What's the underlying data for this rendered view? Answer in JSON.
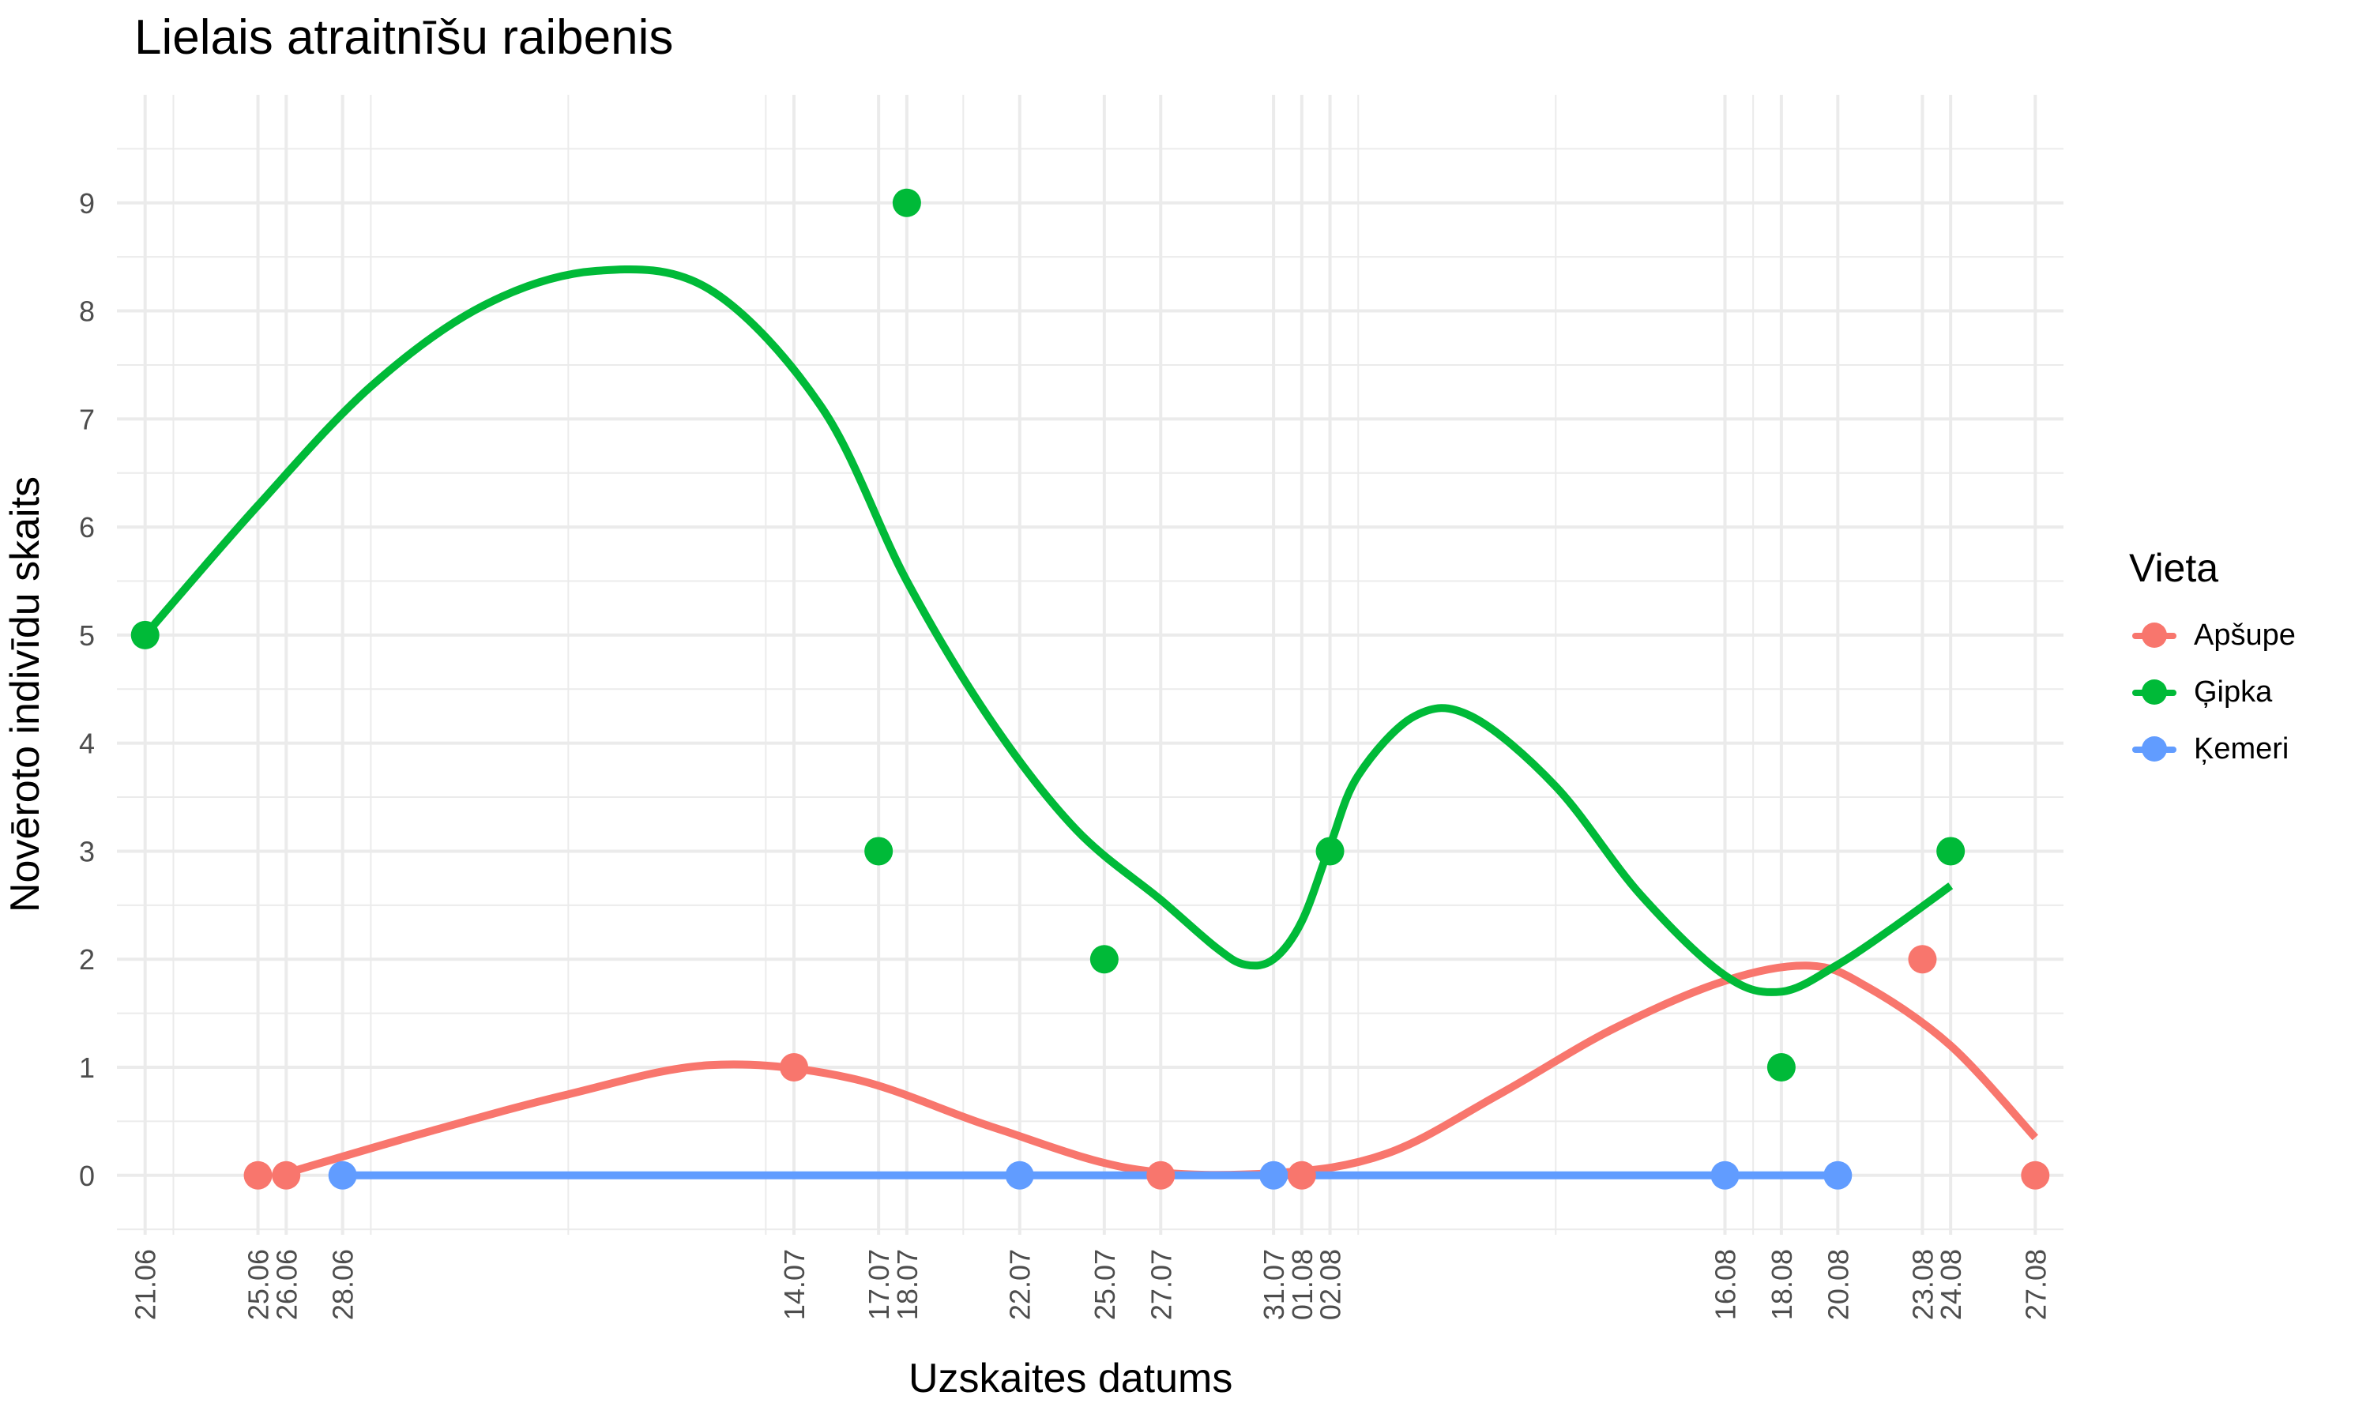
{
  "chart_data": {
    "type": "scatter",
    "title": "Lielais atraitnīšu raibenis",
    "xlabel": "Uzskaites datums",
    "ylabel": "Novēroto indivīdu skaits",
    "legend_title": "Vieta",
    "legend_position": "right",
    "grid": true,
    "ylim": [
      -0.55,
      10
    ],
    "xlim": [
      "2020-06-20",
      "2020-08-28"
    ],
    "y_ticks": [
      "0",
      "1",
      "2",
      "3",
      "4",
      "5",
      "6",
      "7",
      "8",
      "9"
    ],
    "x_ticks": [
      {
        "date": "2020-06-21",
        "label": "21.06"
      },
      {
        "date": "2020-06-25",
        "label": "25.06"
      },
      {
        "date": "2020-06-26",
        "label": "26.06"
      },
      {
        "date": "2020-06-28",
        "label": "28.06"
      },
      {
        "date": "2020-07-14",
        "label": "14.07"
      },
      {
        "date": "2020-07-17",
        "label": "17.07"
      },
      {
        "date": "2020-07-18",
        "label": "18.07"
      },
      {
        "date": "2020-07-22",
        "label": "22.07"
      },
      {
        "date": "2020-07-25",
        "label": "25.07"
      },
      {
        "date": "2020-07-27",
        "label": "27.07"
      },
      {
        "date": "2020-07-31",
        "label": "31.07"
      },
      {
        "date": "2020-08-01",
        "label": "01.08"
      },
      {
        "date": "2020-08-02",
        "label": "02.08"
      },
      {
        "date": "2020-08-16",
        "label": "16.08"
      },
      {
        "date": "2020-08-18",
        "label": "18.08"
      },
      {
        "date": "2020-08-20",
        "label": "20.08"
      },
      {
        "date": "2020-08-23",
        "label": "23.08"
      },
      {
        "date": "2020-08-24",
        "label": "24.08"
      },
      {
        "date": "2020-08-27",
        "label": "27.08"
      }
    ],
    "series": [
      {
        "name": "Apšupe",
        "color": "#F8766D",
        "points": [
          {
            "x": "2020-06-25",
            "y": 0
          },
          {
            "x": "2020-06-26",
            "y": 0
          },
          {
            "x": "2020-07-14",
            "y": 1
          },
          {
            "x": "2020-07-27",
            "y": 0
          },
          {
            "x": "2020-08-01",
            "y": 0
          },
          {
            "x": "2020-08-23",
            "y": 2
          },
          {
            "x": "2020-08-27",
            "y": 0
          }
        ],
        "trend": [
          {
            "x": "2020-06-26",
            "y": 0.02
          },
          {
            "x": "2020-07-01",
            "y": 0.4
          },
          {
            "x": "2020-07-06",
            "y": 0.75
          },
          {
            "x": "2020-07-11",
            "y": 1.02
          },
          {
            "x": "2020-07-16",
            "y": 0.9
          },
          {
            "x": "2020-07-21",
            "y": 0.45
          },
          {
            "x": "2020-07-26",
            "y": 0.06
          },
          {
            "x": "2020-07-31",
            "y": 0.02
          },
          {
            "x": "2020-08-04",
            "y": 0.2
          },
          {
            "x": "2020-08-08",
            "y": 0.75
          },
          {
            "x": "2020-08-12",
            "y": 1.35
          },
          {
            "x": "2020-08-16",
            "y": 1.8
          },
          {
            "x": "2020-08-19",
            "y": 1.94
          },
          {
            "x": "2020-08-21",
            "y": 1.75
          },
          {
            "x": "2020-08-24",
            "y": 1.2
          },
          {
            "x": "2020-08-27",
            "y": 0.35
          }
        ]
      },
      {
        "name": "Ģipka",
        "color": "#00BA38",
        "points": [
          {
            "x": "2020-06-21",
            "y": 5
          },
          {
            "x": "2020-07-17",
            "y": 3
          },
          {
            "x": "2020-07-18",
            "y": 9
          },
          {
            "x": "2020-07-25",
            "y": 2
          },
          {
            "x": "2020-08-02",
            "y": 3
          },
          {
            "x": "2020-08-18",
            "y": 1
          },
          {
            "x": "2020-08-24",
            "y": 3
          }
        ],
        "trend": [
          {
            "x": "2020-06-21",
            "y": 5
          },
          {
            "x": "2020-06-25",
            "y": 6.2
          },
          {
            "x": "2020-06-29",
            "y": 7.3
          },
          {
            "x": "2020-07-03",
            "y": 8.05
          },
          {
            "x": "2020-07-07",
            "y": 8.37
          },
          {
            "x": "2020-07-11",
            "y": 8.2
          },
          {
            "x": "2020-07-15",
            "y": 7.1
          },
          {
            "x": "2020-07-18",
            "y": 5.5
          },
          {
            "x": "2020-07-21",
            "y": 4.2
          },
          {
            "x": "2020-07-24",
            "y": 3.2
          },
          {
            "x": "2020-07-27",
            "y": 2.55
          },
          {
            "x": "2020-07-29",
            "y": 2.1
          },
          {
            "x": "2020-07-30",
            "y": 1.95
          },
          {
            "x": "2020-07-31",
            "y": 2.0
          },
          {
            "x": "2020-08-01",
            "y": 2.35
          },
          {
            "x": "2020-08-02",
            "y": 3.05
          },
          {
            "x": "2020-08-03",
            "y": 3.7
          },
          {
            "x": "2020-08-05",
            "y": 4.25
          },
          {
            "x": "2020-08-07",
            "y": 4.25
          },
          {
            "x": "2020-08-10",
            "y": 3.6
          },
          {
            "x": "2020-08-13",
            "y": 2.6
          },
          {
            "x": "2020-08-16",
            "y": 1.85
          },
          {
            "x": "2020-08-18",
            "y": 1.7
          },
          {
            "x": "2020-08-20",
            "y": 1.95
          },
          {
            "x": "2020-08-22",
            "y": 2.3
          },
          {
            "x": "2020-08-24",
            "y": 2.68
          }
        ]
      },
      {
        "name": "Ķemeri",
        "color": "#619CFF",
        "points": [
          {
            "x": "2020-06-28",
            "y": 0
          },
          {
            "x": "2020-07-22",
            "y": 0
          },
          {
            "x": "2020-07-31",
            "y": 0
          },
          {
            "x": "2020-08-16",
            "y": 0
          },
          {
            "x": "2020-08-20",
            "y": 0
          }
        ],
        "trend": [
          {
            "x": "2020-06-28",
            "y": 0
          },
          {
            "x": "2020-08-20",
            "y": 0
          }
        ]
      }
    ]
  }
}
